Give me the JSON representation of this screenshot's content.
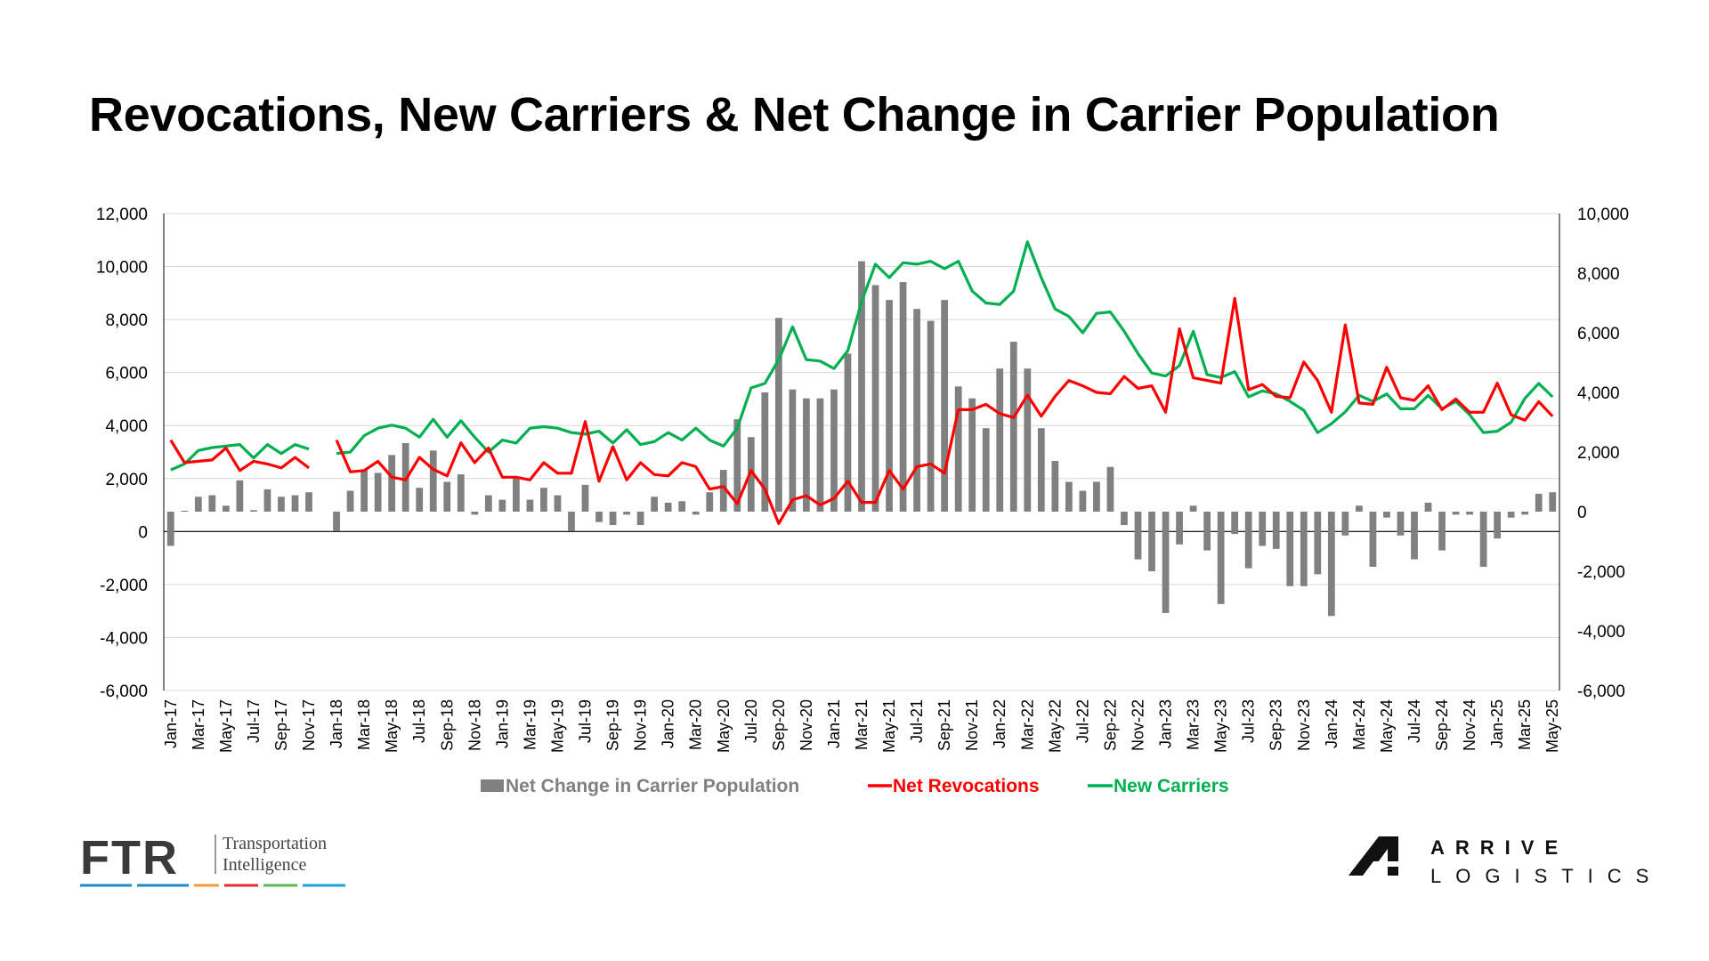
{
  "title": "Revocations, New Carriers & Net Change in Carrier Population",
  "colors": {
    "net_change": "#808080",
    "net_revocations": "#ff0000",
    "new_carriers": "#00b050"
  },
  "logos": {
    "ftr_mark": "FTR",
    "ftr_line1": "Transportation",
    "ftr_line2": "Intelligence",
    "arrive_line1": "ARRIVE",
    "arrive_line2": "LOGISTICS"
  },
  "chart_data": {
    "type": "bar",
    "title": "Revocations, New Carriers & Net Change in Carrier Population",
    "categories": [
      "Jan-17",
      "Feb-17",
      "Mar-17",
      "Apr-17",
      "May-17",
      "Jun-17",
      "Jul-17",
      "Aug-17",
      "Sep-17",
      "Oct-17",
      "Nov-17",
      "Dec-17",
      "Jan-18",
      "Feb-18",
      "Mar-18",
      "Apr-18",
      "May-18",
      "Jun-18",
      "Jul-18",
      "Aug-18",
      "Sep-18",
      "Oct-18",
      "Nov-18",
      "Dec-18",
      "Jan-19",
      "Feb-19",
      "Mar-19",
      "Apr-19",
      "May-19",
      "Jun-19",
      "Jul-19",
      "Aug-19",
      "Sep-19",
      "Oct-19",
      "Nov-19",
      "Dec-19",
      "Jan-20",
      "Feb-20",
      "Mar-20",
      "Apr-20",
      "May-20",
      "Jun-20",
      "Jul-20",
      "Aug-20",
      "Sep-20",
      "Oct-20",
      "Nov-20",
      "Dec-20",
      "Jan-21",
      "Feb-21",
      "Mar-21",
      "Apr-21",
      "May-21",
      "Jun-21",
      "Jul-21",
      "Aug-21",
      "Sep-21",
      "Oct-21",
      "Nov-21",
      "Dec-21",
      "Jan-22",
      "Feb-22",
      "Mar-22",
      "Apr-22",
      "May-22",
      "Jun-22",
      "Jul-22",
      "Aug-22",
      "Sep-22",
      "Oct-22",
      "Nov-22",
      "Dec-22",
      "Jan-23",
      "Feb-23",
      "Mar-23",
      "Apr-23",
      "May-23",
      "Jun-23",
      "Jul-23",
      "Aug-23",
      "Sep-23",
      "Oct-23",
      "Nov-23",
      "Dec-23",
      "Jan-24",
      "Feb-24",
      "Mar-24",
      "Apr-24",
      "May-24",
      "Jun-24",
      "Jul-24",
      "Aug-24",
      "Sep-24",
      "Oct-24",
      "Nov-24",
      "Dec-24",
      "Jan-25",
      "Feb-25",
      "Mar-25",
      "Apr-25",
      "May-25"
    ],
    "x_tick_labels": [
      "Jan-17",
      "Mar-17",
      "May-17",
      "Jul-17",
      "Sep-17",
      "Nov-17",
      "Jan-18",
      "Mar-18",
      "May-18",
      "Jul-18",
      "Sep-18",
      "Nov-18",
      "Jan-19",
      "Mar-19",
      "May-19",
      "Jul-19",
      "Sep-19",
      "Nov-19",
      "Jan-20",
      "Mar-20",
      "May-20",
      "Jul-20",
      "Sep-20",
      "Nov-20",
      "Jan-21",
      "Mar-21",
      "May-21",
      "Jul-21",
      "Sep-21",
      "Nov-21",
      "Jan-22",
      "Mar-22",
      "May-22",
      "Jul-22",
      "Sep-22",
      "Nov-22",
      "Jan-23",
      "Mar-23",
      "May-23",
      "Jul-23",
      "Sep-23",
      "Nov-23",
      "Jan-24",
      "Mar-24",
      "May-24",
      "Jul-24",
      "Sep-24",
      "Nov-24",
      "Jan-25",
      "Mar-25",
      "May-25"
    ],
    "series": [
      {
        "name": "Net Change in Carrier Population",
        "type": "bar",
        "axis": "right",
        "values": [
          -1150,
          30,
          500,
          550,
          200,
          1050,
          50,
          750,
          500,
          550,
          650,
          null,
          -650,
          700,
          1400,
          1300,
          1900,
          2300,
          800,
          2050,
          1000,
          1250,
          -100,
          550,
          400,
          1150,
          400,
          800,
          550,
          -650,
          900,
          -350,
          -450,
          -100,
          -450,
          500,
          300,
          350,
          -100,
          650,
          1400,
          3100,
          2500,
          4000,
          6500,
          4100,
          3800,
          3800,
          4100,
          5300,
          8400,
          7600,
          7100,
          7700,
          6800,
          6400,
          7100,
          4200,
          3800,
          2800,
          4800,
          5700,
          4800,
          2800,
          1700,
          1000,
          700,
          1000,
          1500,
          -450,
          -1600,
          -2000,
          -3400,
          -1100,
          200,
          -1300,
          -3100,
          -750,
          -1900,
          -1150,
          -1250,
          -2500,
          -2500,
          -2100,
          -3500,
          -800,
          200,
          -1850,
          -200,
          -800,
          -1600,
          300,
          -1300,
          -100,
          -100,
          -1850,
          -900,
          -200,
          -100,
          600,
          650
        ]
      },
      {
        "name": "Net Revocations",
        "type": "line",
        "axis": "left",
        "values": [
          3450,
          2600,
          2650,
          2700,
          3150,
          2300,
          2650,
          2550,
          2400,
          2800,
          2400,
          null,
          3450,
          2250,
          2300,
          2650,
          2050,
          1950,
          2800,
          2350,
          2100,
          3350,
          2600,
          3150,
          2050,
          2050,
          1950,
          2600,
          2200,
          2200,
          4150,
          1900,
          3200,
          1950,
          2600,
          2150,
          2100,
          2600,
          2450,
          1600,
          1700,
          1050,
          2300,
          1600,
          300,
          1200,
          1350,
          1000,
          1250,
          1900,
          1100,
          1100,
          2300,
          1600,
          2450,
          2550,
          2200,
          4600,
          4600,
          4800,
          4450,
          4300,
          5150,
          4350,
          5100,
          5700,
          5500,
          5250,
          5200,
          5850,
          5400,
          5500,
          4500,
          7650,
          5800,
          5700,
          5600,
          8800,
          5350,
          5550,
          5100,
          5050,
          6400,
          5700,
          4500,
          7800,
          4850,
          4800,
          6200,
          5050,
          4950,
          5500,
          4600,
          5000,
          4500,
          4500,
          5600,
          4400,
          4200,
          4900,
          4350
        ]
      },
      {
        "name": "New Carriers",
        "type": "line",
        "axis": "right",
        "values": [
          1400,
          1600,
          2050,
          2150,
          2200,
          2250,
          1800,
          2250,
          1950,
          2250,
          2100,
          null,
          1950,
          2000,
          2550,
          2800,
          2900,
          2800,
          2500,
          3100,
          2500,
          3050,
          2500,
          2000,
          2400,
          2300,
          2800,
          2850,
          2800,
          2650,
          2600,
          2700,
          2300,
          2750,
          2250,
          2350,
          2650,
          2400,
          2800,
          2400,
          2200,
          2800,
          4150,
          4300,
          5100,
          6200,
          5100,
          5050,
          4800,
          5400,
          7050,
          8300,
          7850,
          8350,
          8300,
          8400,
          8150,
          8400,
          7400,
          7000,
          6950,
          7400,
          9050,
          7850,
          6800,
          6550,
          6000,
          6650,
          6700,
          6050,
          5300,
          4650,
          4550,
          4900,
          6050,
          4600,
          4500,
          4700,
          3850,
          4050,
          3950,
          3700,
          3400,
          2650,
          2950,
          3350,
          3900,
          3700,
          3950,
          3450,
          3450,
          3900,
          3450,
          3700,
          3250,
          2650,
          2700,
          3000,
          3800,
          4300,
          3850
        ]
      }
    ],
    "left_axis": {
      "ylim": [
        -6000,
        12000
      ],
      "ticks": [
        -6000,
        -4000,
        -2000,
        0,
        2000,
        4000,
        6000,
        8000,
        10000,
        12000
      ],
      "tick_labels": [
        "-6,000",
        "-4,000",
        "-2,000",
        "0",
        "2,000",
        "4,000",
        "6,000",
        "8,000",
        "10,000",
        "12,000"
      ]
    },
    "right_axis": {
      "ylim": [
        -6000,
        10000
      ],
      "ticks": [
        -6000,
        -4000,
        -2000,
        0,
        2000,
        4000,
        6000,
        8000,
        10000
      ],
      "tick_labels": [
        "-6,000",
        "-4,000",
        "-2,000",
        "0",
        "2,000",
        "4,000",
        "6,000",
        "8,000",
        "10,000"
      ]
    },
    "xlabel": "",
    "ylabel": "",
    "grid": true,
    "legend": {
      "position": "bottom",
      "entries": [
        "Net Change in Carrier Population",
        "Net Revocations",
        "New Carriers"
      ]
    }
  }
}
